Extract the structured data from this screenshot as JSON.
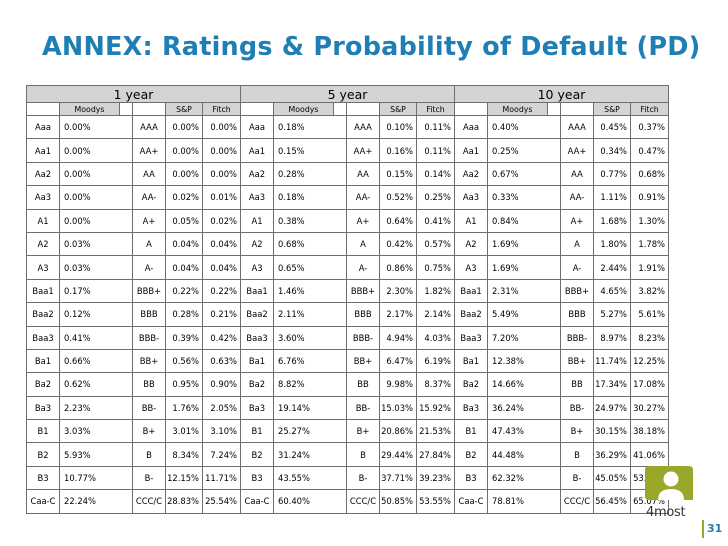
{
  "title": "ANNEX: Ratings & Probability of Default (PD)",
  "horizons": [
    "1 year",
    "5 year",
    "10 year"
  ],
  "sub_headers": {
    "moodys": "Moodys",
    "sp": "S&P",
    "fitch": "Fitch"
  },
  "rows": [
    {
      "m": "Aaa",
      "s": "AAA",
      "p": [
        [
          "0.00%",
          "0.00%",
          "0.00%"
        ],
        [
          "0.18%",
          "0.10%",
          "0.11%"
        ],
        [
          "0.40%",
          "0.45%",
          "0.37%"
        ]
      ]
    },
    {
      "m": "Aa1",
      "s": "AA+",
      "p": [
        [
          "0.00%",
          "0.00%",
          "0.00%"
        ],
        [
          "0.15%",
          "0.16%",
          "0.11%"
        ],
        [
          "0.25%",
          "0.34%",
          "0.47%"
        ]
      ]
    },
    {
      "m": "Aa2",
      "s": "AA",
      "p": [
        [
          "0.00%",
          "0.00%",
          "0.00%"
        ],
        [
          "0.28%",
          "0.15%",
          "0.14%"
        ],
        [
          "0.67%",
          "0.77%",
          "0.68%"
        ]
      ]
    },
    {
      "m": "Aa3",
      "s": "AA-",
      "p": [
        [
          "0.00%",
          "0.02%",
          "0.01%"
        ],
        [
          "0.18%",
          "0.52%",
          "0.25%"
        ],
        [
          "0.33%",
          "1.11%",
          "0.91%"
        ]
      ]
    },
    {
      "m": "A1",
      "s": "A+",
      "p": [
        [
          "0.00%",
          "0.05%",
          "0.02%"
        ],
        [
          "0.38%",
          "0.64%",
          "0.41%"
        ],
        [
          "0.84%",
          "1.68%",
          "1.30%"
        ]
      ]
    },
    {
      "m": "A2",
      "s": "A",
      "p": [
        [
          "0.03%",
          "0.04%",
          "0.04%"
        ],
        [
          "0.68%",
          "0.42%",
          "0.57%"
        ],
        [
          "1.69%",
          "1.80%",
          "1.78%"
        ]
      ]
    },
    {
      "m": "A3",
      "s": "A-",
      "p": [
        [
          "0.03%",
          "0.04%",
          "0.04%"
        ],
        [
          "0.65%",
          "0.86%",
          "0.75%"
        ],
        [
          "1.69%",
          "2.44%",
          "1.91%"
        ]
      ]
    },
    {
      "m": "Baa1",
      "s": "BBB+",
      "p": [
        [
          "0.17%",
          "0.22%",
          "0.22%"
        ],
        [
          "1.46%",
          "2.30%",
          "1.82%"
        ],
        [
          "2.31%",
          "4.65%",
          "3.82%"
        ]
      ]
    },
    {
      "m": "Baa2",
      "s": "BBB",
      "p": [
        [
          "0.12%",
          "0.28%",
          "0.21%"
        ],
        [
          "2.11%",
          "2.17%",
          "2.14%"
        ],
        [
          "5.49%",
          "5.27%",
          "5.61%"
        ]
      ]
    },
    {
      "m": "Baa3",
      "s": "BBB-",
      "p": [
        [
          "0.41%",
          "0.39%",
          "0.42%"
        ],
        [
          "3.60%",
          "4.94%",
          "4.03%"
        ],
        [
          "7.20%",
          "8.97%",
          "8.23%"
        ]
      ]
    },
    {
      "m": "Ba1",
      "s": "BB+",
      "p": [
        [
          "0.66%",
          "0.56%",
          "0.63%"
        ],
        [
          "6.76%",
          "6.47%",
          "6.19%"
        ],
        [
          "12.38%",
          "11.74%",
          "12.25%"
        ]
      ]
    },
    {
      "m": "Ba2",
      "s": "BB",
      "p": [
        [
          "0.62%",
          "0.95%",
          "0.90%"
        ],
        [
          "8.82%",
          "9.98%",
          "8.37%"
        ],
        [
          "14.66%",
          "17.34%",
          "17.08%"
        ]
      ]
    },
    {
      "m": "Ba3",
      "s": "BB-",
      "p": [
        [
          "2.23%",
          "1.76%",
          "2.05%"
        ],
        [
          "19.14%",
          "15.03%",
          "15.92%"
        ],
        [
          "36.24%",
          "24.97%",
          "30.27%"
        ]
      ]
    },
    {
      "m": "B1",
      "s": "B+",
      "p": [
        [
          "3.03%",
          "3.01%",
          "3.10%"
        ],
        [
          "25.27%",
          "20.86%",
          "21.53%"
        ],
        [
          "47.43%",
          "30.15%",
          "38.18%"
        ]
      ]
    },
    {
      "m": "B2",
      "s": "B",
      "p": [
        [
          "5.93%",
          "8.34%",
          "7.24%"
        ],
        [
          "31.24%",
          "29.44%",
          "27.84%"
        ],
        [
          "44.48%",
          "36.29%",
          "41.06%"
        ]
      ]
    },
    {
      "m": "B3",
      "s": "B-",
      "p": [
        [
          "10.77%",
          "12.15%",
          "11.71%"
        ],
        [
          "43.55%",
          "37.71%",
          "39.23%"
        ],
        [
          "62.32%",
          "45.05%",
          "53.69%"
        ]
      ]
    },
    {
      "m": "Caa-C",
      "s": "CCC/C",
      "p": [
        [
          "22.24%",
          "28.83%",
          "25.54%"
        ],
        [
          "60.40%",
          "50.85%",
          "53.55%"
        ],
        [
          "78.81%",
          "56.45%",
          "65.07%"
        ]
      ]
    }
  ],
  "logo_text": "4most",
  "page_number": "31",
  "colors": {
    "title": "#1f7fb4",
    "header_fill": "#d4d4d4",
    "logo_green": "#9aa82a"
  }
}
